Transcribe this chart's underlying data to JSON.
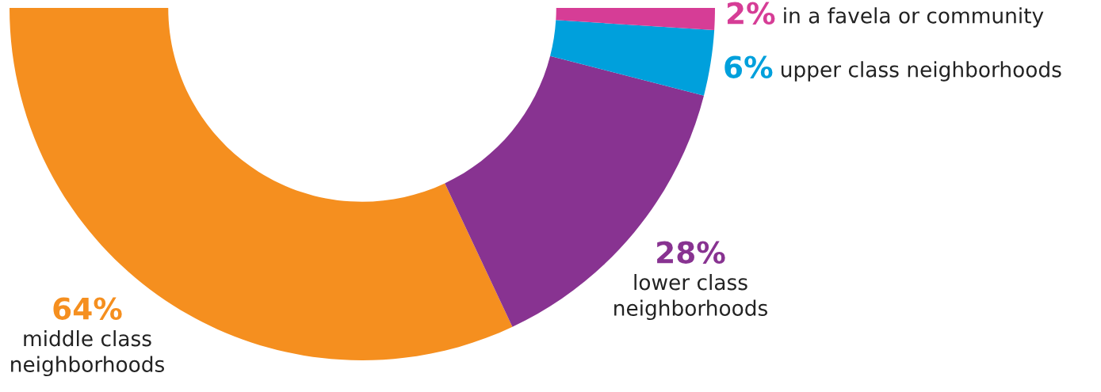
{
  "chart_data": {
    "type": "donut",
    "categories": [
      "middle class\nneighborhoods",
      "lower class\nneighborhoods",
      "upper class neighborhoods",
      "in a favela or community"
    ],
    "values": [
      64,
      28,
      6,
      2
    ],
    "value_labels": [
      "64%",
      "28%",
      "6%",
      "2%"
    ],
    "colors": [
      "#f58f1f",
      "#883391",
      "#00a0dc",
      "#d63d96"
    ],
    "legend": false
  }
}
